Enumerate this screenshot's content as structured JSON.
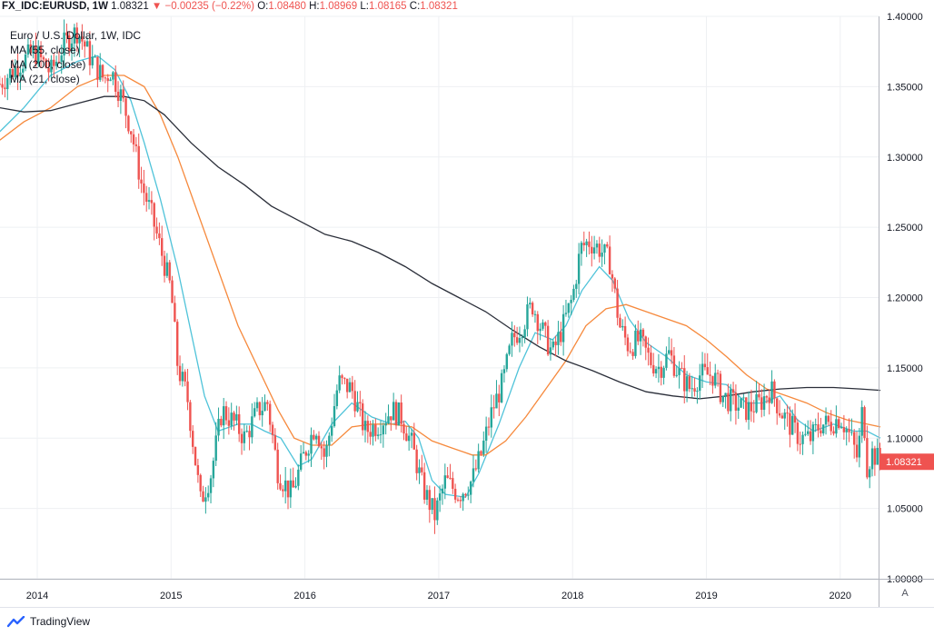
{
  "header": {
    "symbol": "FX_IDC:EURUSD, 1W",
    "last": "1.08321",
    "arrow": "▼",
    "change": "−0.00235 (−0.22%)",
    "o_label": "O:",
    "o_value": "1.08480",
    "h_label": "H:",
    "h_value": "1.08969",
    "l_label": "L:",
    "l_value": "1.08165",
    "c_label": "C:",
    "c_value": "1.08321"
  },
  "legend": {
    "title": "Euro / U.S. Dollar, 1W, IDC",
    "ma55": "MA (55, close)",
    "ma200": "MA (200, close)",
    "ma21": "MA (21, close)"
  },
  "branding": "TradingView",
  "auto_button": "A",
  "chart_data": {
    "type": "candlestick",
    "title": "Euro / U.S. Dollar, 1W, IDC",
    "x_range": [
      2013.72,
      2020.33
    ],
    "ylim": [
      1.0,
      1.4
    ],
    "y_ticks": [
      1.0,
      1.05,
      1.1,
      1.15,
      1.2,
      1.25,
      1.3,
      1.35,
      1.4
    ],
    "y_tick_labels": [
      "1.00000",
      "1.05000",
      "1.10000",
      "1.15000",
      "1.20000",
      "1.25000",
      "1.30000",
      "1.35000",
      "1.40000"
    ],
    "x_ticks": [
      2014,
      2015,
      2016,
      2017,
      2018,
      2019,
      2020
    ],
    "x_tick_labels": [
      "2014",
      "2015",
      "2016",
      "2017",
      "2018",
      "2019",
      "2020"
    ],
    "last_price_label": "1.08321",
    "last_price": 1.08321,
    "close_path": [
      [
        2013.72,
        1.352
      ],
      [
        2013.85,
        1.365
      ],
      [
        2013.98,
        1.375
      ],
      [
        2014.1,
        1.36
      ],
      [
        2014.2,
        1.38
      ],
      [
        2014.3,
        1.39
      ],
      [
        2014.4,
        1.37
      ],
      [
        2014.5,
        1.355
      ],
      [
        2014.55,
        1.362
      ],
      [
        2014.62,
        1.345
      ],
      [
        2014.7,
        1.32
      ],
      [
        2014.78,
        1.28
      ],
      [
        2014.85,
        1.26
      ],
      [
        2014.92,
        1.235
      ],
      [
        2015.0,
        1.205
      ],
      [
        2015.05,
        1.15
      ],
      [
        2015.12,
        1.13
      ],
      [
        2015.22,
        1.055
      ],
      [
        2015.3,
        1.075
      ],
      [
        2015.38,
        1.12
      ],
      [
        2015.48,
        1.11
      ],
      [
        2015.55,
        1.1
      ],
      [
        2015.65,
        1.12
      ],
      [
        2015.72,
        1.125
      ],
      [
        2015.8,
        1.075
      ],
      [
        2015.9,
        1.06
      ],
      [
        2016.0,
        1.09
      ],
      [
        2016.08,
        1.11
      ],
      [
        2016.15,
        1.085
      ],
      [
        2016.25,
        1.14
      ],
      [
        2016.35,
        1.135
      ],
      [
        2016.45,
        1.105
      ],
      [
        2016.55,
        1.11
      ],
      [
        2016.65,
        1.12
      ],
      [
        2016.72,
        1.115
      ],
      [
        2016.8,
        1.095
      ],
      [
        2016.88,
        1.065
      ],
      [
        2016.97,
        1.045
      ],
      [
        2017.05,
        1.07
      ],
      [
        2017.15,
        1.06
      ],
      [
        2017.25,
        1.07
      ],
      [
        2017.32,
        1.09
      ],
      [
        2017.4,
        1.12
      ],
      [
        2017.48,
        1.14
      ],
      [
        2017.55,
        1.17
      ],
      [
        2017.62,
        1.18
      ],
      [
        2017.7,
        1.195
      ],
      [
        2017.78,
        1.175
      ],
      [
        2017.85,
        1.16
      ],
      [
        2017.93,
        1.18
      ],
      [
        2018.0,
        1.2
      ],
      [
        2018.06,
        1.235
      ],
      [
        2018.12,
        1.24
      ],
      [
        2018.2,
        1.235
      ],
      [
        2018.28,
        1.225
      ],
      [
        2018.35,
        1.18
      ],
      [
        2018.42,
        1.165
      ],
      [
        2018.5,
        1.17
      ],
      [
        2018.58,
        1.155
      ],
      [
        2018.65,
        1.15
      ],
      [
        2018.72,
        1.16
      ],
      [
        2018.8,
        1.145
      ],
      [
        2018.88,
        1.135
      ],
      [
        2018.95,
        1.145
      ],
      [
        2019.05,
        1.145
      ],
      [
        2019.12,
        1.13
      ],
      [
        2019.2,
        1.125
      ],
      [
        2019.3,
        1.12
      ],
      [
        2019.4,
        1.125
      ],
      [
        2019.48,
        1.135
      ],
      [
        2019.55,
        1.12
      ],
      [
        2019.62,
        1.11
      ],
      [
        2019.7,
        1.1
      ],
      [
        2019.78,
        1.1
      ],
      [
        2019.85,
        1.11
      ],
      [
        2019.92,
        1.11
      ],
      [
        2020.0,
        1.115
      ],
      [
        2020.08,
        1.1
      ],
      [
        2020.13,
        1.085
      ],
      [
        2020.17,
        1.125
      ],
      [
        2020.2,
        1.08
      ],
      [
        2020.24,
        1.09
      ],
      [
        2020.28,
        1.085
      ],
      [
        2020.3,
        1.083
      ]
    ],
    "series": [
      {
        "name": "MA (21, close)",
        "color": "#4fc3d9",
        "points": [
          [
            2013.72,
            1.318
          ],
          [
            2013.9,
            1.335
          ],
          [
            2014.1,
            1.358
          ],
          [
            2014.3,
            1.368
          ],
          [
            2014.45,
            1.372
          ],
          [
            2014.58,
            1.362
          ],
          [
            2014.7,
            1.34
          ],
          [
            2014.8,
            1.31
          ],
          [
            2014.92,
            1.27
          ],
          [
            2015.05,
            1.22
          ],
          [
            2015.15,
            1.175
          ],
          [
            2015.25,
            1.13
          ],
          [
            2015.35,
            1.105
          ],
          [
            2015.5,
            1.11
          ],
          [
            2015.6,
            1.11
          ],
          [
            2015.7,
            1.105
          ],
          [
            2015.82,
            1.1
          ],
          [
            2015.95,
            1.08
          ],
          [
            2016.05,
            1.085
          ],
          [
            2016.2,
            1.11
          ],
          [
            2016.35,
            1.125
          ],
          [
            2016.5,
            1.115
          ],
          [
            2016.65,
            1.11
          ],
          [
            2016.75,
            1.112
          ],
          [
            2016.85,
            1.1
          ],
          [
            2016.95,
            1.07
          ],
          [
            2017.05,
            1.06
          ],
          [
            2017.2,
            1.058
          ],
          [
            2017.3,
            1.075
          ],
          [
            2017.45,
            1.11
          ],
          [
            2017.6,
            1.15
          ],
          [
            2017.72,
            1.175
          ],
          [
            2017.85,
            1.17
          ],
          [
            2017.95,
            1.18
          ],
          [
            2018.07,
            1.205
          ],
          [
            2018.2,
            1.222
          ],
          [
            2018.3,
            1.212
          ],
          [
            2018.42,
            1.185
          ],
          [
            2018.55,
            1.168
          ],
          [
            2018.7,
            1.158
          ],
          [
            2018.85,
            1.145
          ],
          [
            2019.0,
            1.14
          ],
          [
            2019.15,
            1.138
          ],
          [
            2019.3,
            1.125
          ],
          [
            2019.42,
            1.125
          ],
          [
            2019.55,
            1.13
          ],
          [
            2019.68,
            1.113
          ],
          [
            2019.8,
            1.105
          ],
          [
            2019.95,
            1.11
          ],
          [
            2020.1,
            1.105
          ],
          [
            2020.2,
            1.105
          ],
          [
            2020.3,
            1.1
          ]
        ]
      },
      {
        "name": "MA (55, close)",
        "color": "#f6893c",
        "points": [
          [
            2013.72,
            1.312
          ],
          [
            2013.9,
            1.325
          ],
          [
            2014.1,
            1.335
          ],
          [
            2014.3,
            1.35
          ],
          [
            2014.5,
            1.358
          ],
          [
            2014.65,
            1.358
          ],
          [
            2014.8,
            1.35
          ],
          [
            2014.92,
            1.33
          ],
          [
            2015.05,
            1.3
          ],
          [
            2015.2,
            1.26
          ],
          [
            2015.35,
            1.22
          ],
          [
            2015.5,
            1.18
          ],
          [
            2015.65,
            1.15
          ],
          [
            2015.8,
            1.12
          ],
          [
            2015.92,
            1.1
          ],
          [
            2016.05,
            1.095
          ],
          [
            2016.2,
            1.095
          ],
          [
            2016.35,
            1.108
          ],
          [
            2016.5,
            1.11
          ],
          [
            2016.65,
            1.11
          ],
          [
            2016.8,
            1.108
          ],
          [
            2016.95,
            1.098
          ],
          [
            2017.1,
            1.093
          ],
          [
            2017.25,
            1.088
          ],
          [
            2017.35,
            1.088
          ],
          [
            2017.5,
            1.098
          ],
          [
            2017.65,
            1.115
          ],
          [
            2017.8,
            1.135
          ],
          [
            2017.95,
            1.155
          ],
          [
            2018.1,
            1.18
          ],
          [
            2018.25,
            1.192
          ],
          [
            2018.4,
            1.195
          ],
          [
            2018.55,
            1.19
          ],
          [
            2018.7,
            1.185
          ],
          [
            2018.85,
            1.18
          ],
          [
            2019.0,
            1.17
          ],
          [
            2019.15,
            1.158
          ],
          [
            2019.3,
            1.145
          ],
          [
            2019.45,
            1.135
          ],
          [
            2019.6,
            1.13
          ],
          [
            2019.75,
            1.125
          ],
          [
            2019.9,
            1.118
          ],
          [
            2020.05,
            1.113
          ],
          [
            2020.2,
            1.11
          ],
          [
            2020.3,
            1.108
          ]
        ]
      },
      {
        "name": "MA (200, close)",
        "color": "#2a2e39",
        "points": [
          [
            2013.72,
            1.335
          ],
          [
            2013.9,
            1.332
          ],
          [
            2014.1,
            1.333
          ],
          [
            2014.3,
            1.338
          ],
          [
            2014.5,
            1.343
          ],
          [
            2014.65,
            1.343
          ],
          [
            2014.8,
            1.34
          ],
          [
            2014.95,
            1.33
          ],
          [
            2015.15,
            1.31
          ],
          [
            2015.35,
            1.293
          ],
          [
            2015.55,
            1.28
          ],
          [
            2015.75,
            1.265
          ],
          [
            2015.95,
            1.255
          ],
          [
            2016.15,
            1.245
          ],
          [
            2016.35,
            1.24
          ],
          [
            2016.55,
            1.232
          ],
          [
            2016.75,
            1.222
          ],
          [
            2016.95,
            1.21
          ],
          [
            2017.15,
            1.2
          ],
          [
            2017.35,
            1.19
          ],
          [
            2017.55,
            1.177
          ],
          [
            2017.75,
            1.165
          ],
          [
            2017.95,
            1.155
          ],
          [
            2018.15,
            1.148
          ],
          [
            2018.35,
            1.14
          ],
          [
            2018.55,
            1.133
          ],
          [
            2018.75,
            1.13
          ],
          [
            2018.95,
            1.128
          ],
          [
            2019.15,
            1.13
          ],
          [
            2019.35,
            1.133
          ],
          [
            2019.55,
            1.135
          ],
          [
            2019.75,
            1.136
          ],
          [
            2019.95,
            1.136
          ],
          [
            2020.15,
            1.135
          ],
          [
            2020.3,
            1.134
          ]
        ]
      }
    ]
  }
}
